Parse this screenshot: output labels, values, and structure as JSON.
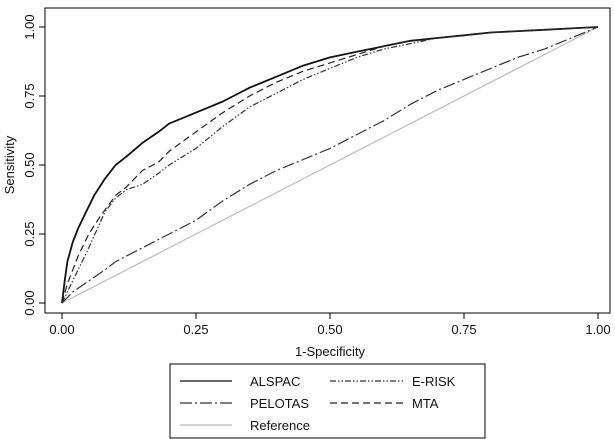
{
  "chart_data": {
    "type": "line",
    "title": "",
    "xlabel": "1-Specificity",
    "ylabel": "Sensitivity",
    "xlim": [
      0,
      1
    ],
    "ylim": [
      0,
      1
    ],
    "x_ticks": [
      "0.00",
      "0.25",
      "0.50",
      "0.75",
      "1.00"
    ],
    "y_ticks": [
      "0.00",
      "0.25",
      "0.50",
      "0.75",
      "1.00"
    ],
    "grid": false,
    "legend": "bottom",
    "series": [
      {
        "name": "ALSPAC",
        "color": "#111111",
        "dash": "solid",
        "points": [
          [
            0,
            0
          ],
          [
            0.005,
            0.08
          ],
          [
            0.01,
            0.15
          ],
          [
            0.02,
            0.22
          ],
          [
            0.03,
            0.27
          ],
          [
            0.04,
            0.31
          ],
          [
            0.05,
            0.35
          ],
          [
            0.06,
            0.39
          ],
          [
            0.08,
            0.45
          ],
          [
            0.1,
            0.5
          ],
          [
            0.12,
            0.53
          ],
          [
            0.15,
            0.58
          ],
          [
            0.18,
            0.62
          ],
          [
            0.2,
            0.65
          ],
          [
            0.25,
            0.69
          ],
          [
            0.3,
            0.73
          ],
          [
            0.35,
            0.78
          ],
          [
            0.4,
            0.82
          ],
          [
            0.45,
            0.86
          ],
          [
            0.5,
            0.89
          ],
          [
            0.55,
            0.91
          ],
          [
            0.6,
            0.93
          ],
          [
            0.65,
            0.95
          ],
          [
            0.7,
            0.96
          ],
          [
            0.75,
            0.97
          ],
          [
            0.8,
            0.98
          ],
          [
            0.85,
            0.985
          ],
          [
            0.9,
            0.99
          ],
          [
            0.95,
            0.995
          ],
          [
            1,
            1
          ]
        ]
      },
      {
        "name": "E-RISK",
        "color": "#333333",
        "dash": "dashdotdot",
        "points": [
          [
            0,
            0
          ],
          [
            0.02,
            0.08
          ],
          [
            0.05,
            0.2
          ],
          [
            0.08,
            0.33
          ],
          [
            0.1,
            0.38
          ],
          [
            0.12,
            0.41
          ],
          [
            0.15,
            0.43
          ],
          [
            0.18,
            0.47
          ],
          [
            0.2,
            0.5
          ],
          [
            0.25,
            0.56
          ],
          [
            0.3,
            0.64
          ],
          [
            0.35,
            0.71
          ],
          [
            0.4,
            0.76
          ],
          [
            0.45,
            0.81
          ],
          [
            0.5,
            0.85
          ],
          [
            0.55,
            0.89
          ],
          [
            0.6,
            0.92
          ],
          [
            0.65,
            0.94
          ],
          [
            0.7,
            0.96
          ],
          [
            0.75,
            0.97
          ],
          [
            0.8,
            0.98
          ],
          [
            0.85,
            0.985
          ],
          [
            0.9,
            0.99
          ],
          [
            0.95,
            0.995
          ],
          [
            1,
            1
          ]
        ]
      },
      {
        "name": "PELOTAS",
        "color": "#333333",
        "dash": "longdashdot",
        "points": [
          [
            0,
            0
          ],
          [
            0.02,
            0.04
          ],
          [
            0.05,
            0.08
          ],
          [
            0.08,
            0.12
          ],
          [
            0.1,
            0.15
          ],
          [
            0.15,
            0.2
          ],
          [
            0.2,
            0.25
          ],
          [
            0.25,
            0.3
          ],
          [
            0.3,
            0.37
          ],
          [
            0.35,
            0.43
          ],
          [
            0.4,
            0.48
          ],
          [
            0.45,
            0.52
          ],
          [
            0.5,
            0.56
          ],
          [
            0.55,
            0.61
          ],
          [
            0.6,
            0.66
          ],
          [
            0.65,
            0.72
          ],
          [
            0.7,
            0.77
          ],
          [
            0.75,
            0.81
          ],
          [
            0.8,
            0.85
          ],
          [
            0.85,
            0.89
          ],
          [
            0.9,
            0.92
          ],
          [
            0.95,
            0.96
          ],
          [
            1,
            1
          ]
        ]
      },
      {
        "name": "MTA",
        "color": "#222222",
        "dash": "dash",
        "points": [
          [
            0,
            0
          ],
          [
            0.01,
            0.07
          ],
          [
            0.03,
            0.17
          ],
          [
            0.05,
            0.25
          ],
          [
            0.07,
            0.31
          ],
          [
            0.1,
            0.39
          ],
          [
            0.12,
            0.42
          ],
          [
            0.15,
            0.48
          ],
          [
            0.18,
            0.51
          ],
          [
            0.2,
            0.55
          ],
          [
            0.25,
            0.62
          ],
          [
            0.3,
            0.69
          ],
          [
            0.35,
            0.75
          ],
          [
            0.4,
            0.8
          ],
          [
            0.45,
            0.84
          ],
          [
            0.5,
            0.87
          ],
          [
            0.55,
            0.9
          ],
          [
            0.6,
            0.93
          ],
          [
            0.65,
            0.95
          ],
          [
            0.7,
            0.96
          ],
          [
            0.75,
            0.97
          ],
          [
            0.8,
            0.98
          ],
          [
            0.85,
            0.985
          ],
          [
            0.9,
            0.99
          ],
          [
            0.95,
            0.995
          ],
          [
            1,
            1
          ]
        ]
      },
      {
        "name": "Reference",
        "color": "#bbbbbb",
        "dash": "solid",
        "points": [
          [
            0,
            0
          ],
          [
            1,
            1
          ]
        ]
      }
    ],
    "legend_layout": [
      [
        "ALSPAC",
        "E-RISK"
      ],
      [
        "PELOTAS",
        "MTA"
      ],
      [
        "Reference"
      ]
    ]
  }
}
